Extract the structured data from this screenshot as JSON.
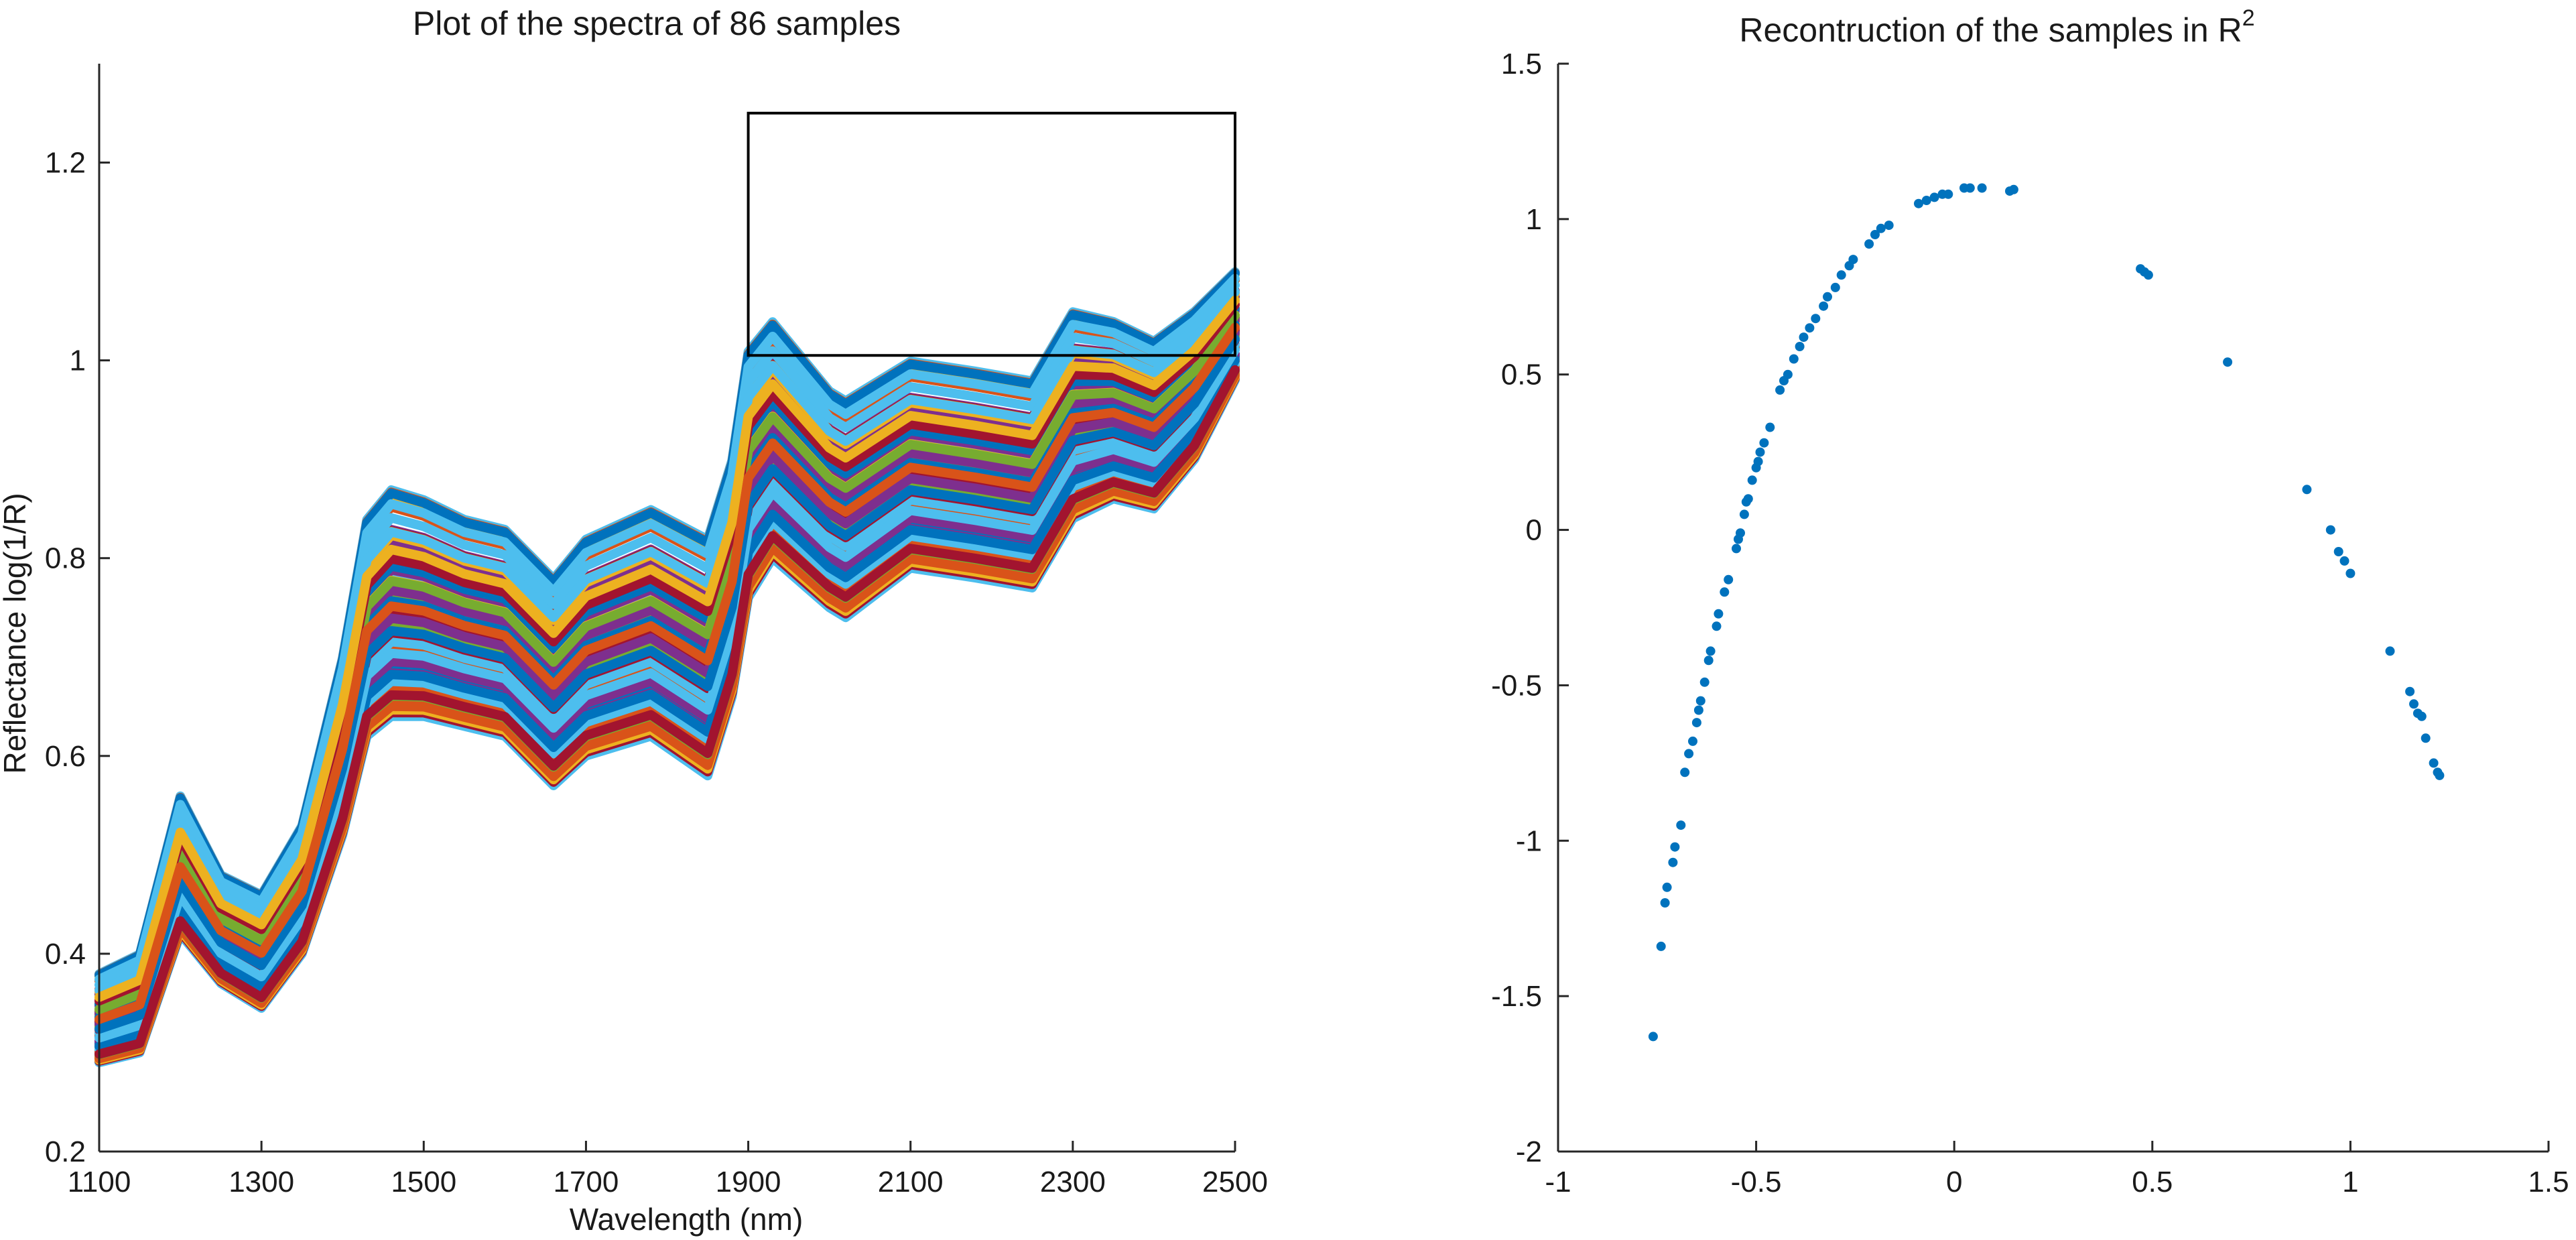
{
  "chart_data": [
    {
      "type": "line",
      "title": "Plot of the spectra of 86 samples",
      "xlabel": "Wavelength (nm)",
      "ylabel": "Reflectance  log(1/R)",
      "xlim": [
        1100,
        2500
      ],
      "ylim": [
        0.2,
        1.3
      ],
      "xticks": [
        1100,
        1300,
        1500,
        1700,
        1900,
        2100,
        2300,
        2500
      ],
      "xtick_labels": [
        "1100",
        "1300",
        "1500",
        "1700",
        "1900",
        "2100",
        "2300",
        "2500"
      ],
      "yticks": [
        0.2,
        0.4,
        0.6,
        0.8,
        1.0,
        1.2
      ],
      "ytick_labels": [
        "0.2",
        "0.4",
        "0.6",
        "0.8",
        "1",
        "1.2"
      ],
      "n_samples": 86,
      "grid": false,
      "series_colors": [
        "#0072BD",
        "#D95319",
        "#EDB120",
        "#7E2F8E",
        "#77AC30",
        "#4DBEEE",
        "#A2142F"
      ],
      "base_spectrum": {
        "wavelength": [
          1100,
          1150,
          1200,
          1250,
          1300,
          1350,
          1400,
          1430,
          1460,
          1500,
          1550,
          1600,
          1660,
          1700,
          1780,
          1850,
          1880,
          1900,
          1930,
          2000,
          2020,
          2100,
          2180,
          2250,
          2300,
          2350,
          2400,
          2450,
          2500
        ],
        "upper": [
          0.38,
          0.4,
          0.56,
          0.48,
          0.46,
          0.53,
          0.7,
          0.84,
          0.87,
          0.86,
          0.84,
          0.83,
          0.78,
          0.82,
          0.85,
          0.82,
          0.9,
          1.01,
          1.04,
          0.97,
          0.96,
          1.0,
          0.99,
          0.98,
          1.05,
          1.04,
          1.02,
          1.05,
          1.09
        ],
        "lower": [
          0.29,
          0.3,
          0.42,
          0.37,
          0.345,
          0.4,
          0.52,
          0.62,
          0.64,
          0.64,
          0.63,
          0.62,
          0.57,
          0.6,
          0.62,
          0.58,
          0.66,
          0.76,
          0.8,
          0.75,
          0.74,
          0.79,
          0.78,
          0.77,
          0.84,
          0.86,
          0.85,
          0.9,
          0.98
        ]
      },
      "zoom_rectangle": {
        "x": [
          1900,
          2500
        ],
        "y": [
          1.005,
          1.25
        ]
      }
    },
    {
      "type": "scatter",
      "title": "Recontruction of the samples in R",
      "title_superscript": "2",
      "xlim": [
        -1,
        1.5
      ],
      "ylim": [
        -2,
        1.5
      ],
      "xticks": [
        -1,
        -0.5,
        0,
        0.5,
        1,
        1.5
      ],
      "xtick_labels": [
        "-1",
        "-0.5",
        "0",
        "0.5",
        "1",
        "1.5"
      ],
      "yticks": [
        -2,
        -1.5,
        -1,
        -0.5,
        0,
        0.5,
        1,
        1.5
      ],
      "ytick_labels": [
        "-2",
        "-1.5",
        "-1",
        "-0.5",
        "0",
        "0.5",
        "1",
        "1.5"
      ],
      "grid": false,
      "marker_color": "#0072BD",
      "points": [
        [
          -0.76,
          -1.63
        ],
        [
          -0.74,
          -1.34
        ],
        [
          -0.73,
          -1.2
        ],
        [
          -0.725,
          -1.15
        ],
        [
          -0.71,
          -1.07
        ],
        [
          -0.705,
          -1.02
        ],
        [
          -0.69,
          -0.95
        ],
        [
          -0.68,
          -0.78
        ],
        [
          -0.67,
          -0.72
        ],
        [
          -0.66,
          -0.68
        ],
        [
          -0.65,
          -0.62
        ],
        [
          -0.645,
          -0.58
        ],
        [
          -0.64,
          -0.55
        ],
        [
          -0.63,
          -0.49
        ],
        [
          -0.62,
          -0.42
        ],
        [
          -0.615,
          -0.39
        ],
        [
          -0.6,
          -0.31
        ],
        [
          -0.595,
          -0.27
        ],
        [
          -0.58,
          -0.2
        ],
        [
          -0.57,
          -0.16
        ],
        [
          -0.55,
          -0.06
        ],
        [
          -0.545,
          -0.03
        ],
        [
          -0.54,
          -0.01
        ],
        [
          -0.53,
          0.05
        ],
        [
          -0.525,
          0.09
        ],
        [
          -0.52,
          0.1
        ],
        [
          -0.51,
          0.16
        ],
        [
          -0.5,
          0.2
        ],
        [
          -0.495,
          0.22
        ],
        [
          -0.49,
          0.25
        ],
        [
          -0.48,
          0.28
        ],
        [
          -0.465,
          0.33
        ],
        [
          -0.44,
          0.45
        ],
        [
          -0.43,
          0.48
        ],
        [
          -0.42,
          0.5
        ],
        [
          -0.405,
          0.55
        ],
        [
          -0.39,
          0.59
        ],
        [
          -0.38,
          0.62
        ],
        [
          -0.365,
          0.65
        ],
        [
          -0.35,
          0.68
        ],
        [
          -0.33,
          0.72
        ],
        [
          -0.32,
          0.75
        ],
        [
          -0.3,
          0.78
        ],
        [
          -0.285,
          0.82
        ],
        [
          -0.265,
          0.85
        ],
        [
          -0.255,
          0.87
        ],
        [
          -0.215,
          0.92
        ],
        [
          -0.2,
          0.95
        ],
        [
          -0.185,
          0.97
        ],
        [
          -0.165,
          0.98
        ],
        [
          -0.09,
          1.05
        ],
        [
          -0.07,
          1.06
        ],
        [
          -0.05,
          1.07
        ],
        [
          -0.03,
          1.08
        ],
        [
          -0.015,
          1.08
        ],
        [
          0.025,
          1.1
        ],
        [
          0.04,
          1.1
        ],
        [
          0.07,
          1.1
        ],
        [
          0.14,
          1.09
        ],
        [
          0.15,
          1.095
        ],
        [
          0.47,
          0.84
        ],
        [
          0.48,
          0.83
        ],
        [
          0.49,
          0.82
        ],
        [
          0.69,
          0.54
        ],
        [
          0.89,
          0.13
        ],
        [
          0.95,
          0.0
        ],
        [
          0.97,
          -0.07
        ],
        [
          0.985,
          -0.1
        ],
        [
          1.0,
          -0.14
        ],
        [
          1.1,
          -0.39
        ],
        [
          1.15,
          -0.52
        ],
        [
          1.16,
          -0.56
        ],
        [
          1.17,
          -0.59
        ],
        [
          1.18,
          -0.6
        ],
        [
          1.19,
          -0.67
        ],
        [
          1.21,
          -0.75
        ],
        [
          1.22,
          -0.78
        ],
        [
          1.225,
          -0.79
        ]
      ]
    }
  ]
}
